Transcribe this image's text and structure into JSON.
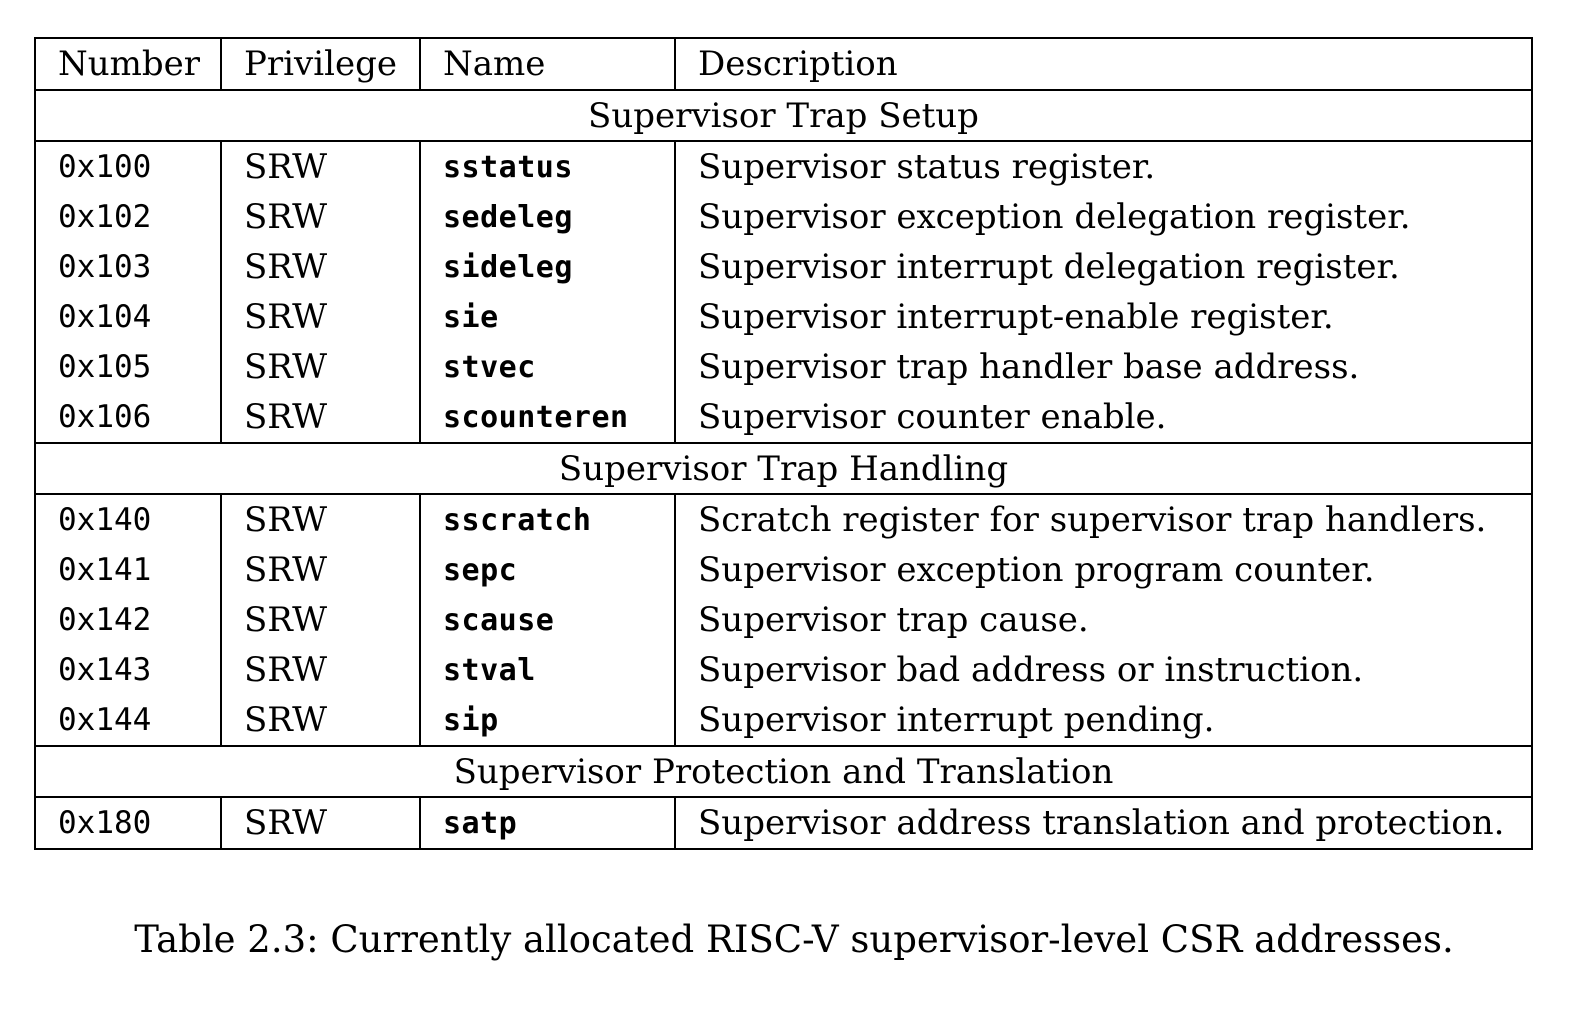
{
  "table": {
    "headers": {
      "number": "Number",
      "privilege": "Privilege",
      "name": "Name",
      "description": "Description"
    },
    "sections": [
      {
        "title": "Supervisor Trap Setup",
        "rows": [
          {
            "number": "0x100",
            "privilege": "SRW",
            "name": "sstatus",
            "description": "Supervisor status register."
          },
          {
            "number": "0x102",
            "privilege": "SRW",
            "name": "sedeleg",
            "description": "Supervisor exception delegation register."
          },
          {
            "number": "0x103",
            "privilege": "SRW",
            "name": "sideleg",
            "description": "Supervisor interrupt delegation register."
          },
          {
            "number": "0x104",
            "privilege": "SRW",
            "name": "sie",
            "description": "Supervisor interrupt-enable register."
          },
          {
            "number": "0x105",
            "privilege": "SRW",
            "name": "stvec",
            "description": "Supervisor trap handler base address."
          },
          {
            "number": "0x106",
            "privilege": "SRW",
            "name": "scounteren",
            "description": "Supervisor counter enable."
          }
        ]
      },
      {
        "title": "Supervisor Trap Handling",
        "rows": [
          {
            "number": "0x140",
            "privilege": "SRW",
            "name": "sscratch",
            "description": "Scratch register for supervisor trap handlers."
          },
          {
            "number": "0x141",
            "privilege": "SRW",
            "name": "sepc",
            "description": "Supervisor exception program counter."
          },
          {
            "number": "0x142",
            "privilege": "SRW",
            "name": "scause",
            "description": "Supervisor trap cause."
          },
          {
            "number": "0x143",
            "privilege": "SRW",
            "name": "stval",
            "description": "Supervisor bad address or instruction."
          },
          {
            "number": "0x144",
            "privilege": "SRW",
            "name": "sip",
            "description": "Supervisor interrupt pending."
          }
        ]
      },
      {
        "title": "Supervisor Protection and Translation",
        "rows": [
          {
            "number": "0x180",
            "privilege": "SRW",
            "name": "satp",
            "description": "Supervisor address translation and protection."
          }
        ]
      }
    ]
  },
  "caption": "Table 2.3: Currently allocated RISC-V supervisor-level CSR addresses."
}
